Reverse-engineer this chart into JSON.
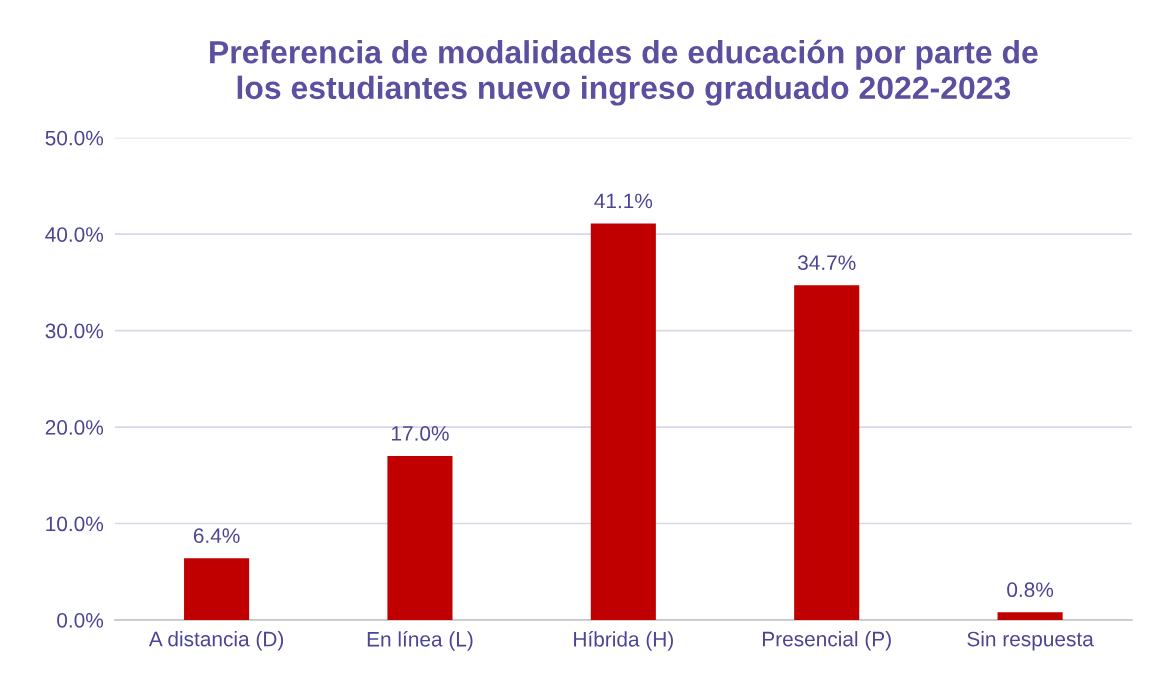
{
  "chart_data": {
    "type": "bar",
    "title": "Preferencia de modalidades de educación por parte de\nlos estudiantes nuevo ingreso graduado 2022-2023",
    "categories": [
      "A distancia (D)",
      "En línea (L)",
      "Híbrida (H)",
      "Presencial (P)",
      "Sin respuesta"
    ],
    "values": [
      6.4,
      17.0,
      41.1,
      34.7,
      0.8
    ],
    "value_labels": [
      "6.4%",
      "17.0%",
      "41.1%",
      "34.7%",
      "0.8%"
    ],
    "color": "#c00000",
    "ylim": [
      0,
      50
    ],
    "yticks": [
      {
        "value": 0,
        "label": "0.0%"
      },
      {
        "value": 10,
        "label": "10.0%"
      },
      {
        "value": 20,
        "label": "20.0%"
      },
      {
        "value": 30,
        "label": "30.0%"
      },
      {
        "value": 40,
        "label": "40.0%"
      },
      {
        "value": 50,
        "label": "50.0%"
      }
    ],
    "grid": "y",
    "legend": false
  }
}
